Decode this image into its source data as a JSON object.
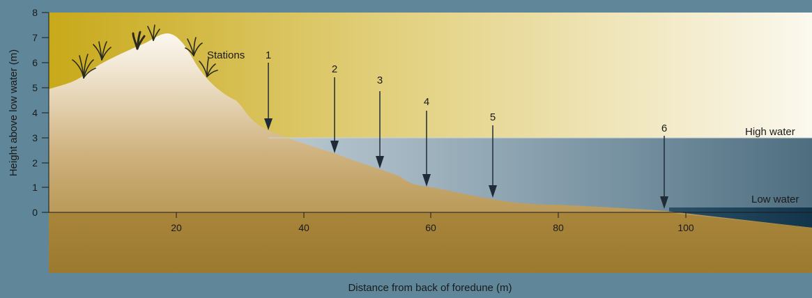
{
  "figure": {
    "ylabel": "Height above low water (m)",
    "xlabel": "Distance from back of foredune (m)",
    "y_ticks": [
      "0",
      "1",
      "2",
      "3",
      "4",
      "5",
      "6",
      "7",
      "8"
    ],
    "x_ticks": [
      "20",
      "40",
      "60",
      "80",
      "100"
    ],
    "stations_label": "Stations",
    "high_water_label": "High water",
    "low_water_label": "Low water"
  },
  "stations": [
    {
      "label": "1",
      "distance_m": 34.5
    },
    {
      "label": "2",
      "distance_m": 45
    },
    {
      "label": "3",
      "distance_m": 52
    },
    {
      "label": "4",
      "distance_m": 59.5
    },
    {
      "label": "5",
      "distance_m": 70
    },
    {
      "label": "6",
      "distance_m": 97
    }
  ],
  "water_levels": {
    "high_water_m": 3,
    "low_water_m": 0
  },
  "colors": {
    "background": "#5f8799",
    "sky_left": "#c8a91a",
    "sky_right": "#fbf8ee",
    "sand": "#a8853a",
    "sand_top": "#fbf6ec",
    "sea_deep": "#16384f",
    "arrow": "#1f2b36",
    "text": "#1a1a1a"
  }
}
